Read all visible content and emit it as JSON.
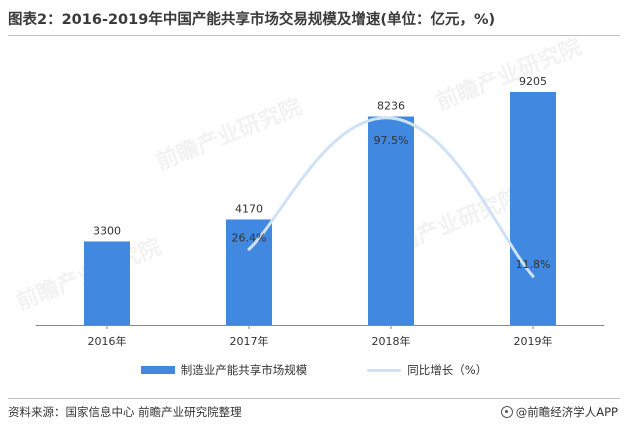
{
  "title": "图表2：2016-2019年中国产能共享市场交易规模及增速(单位：亿元，%)",
  "source": "资料来源：国家信息中心 前瞻产业研究院整理",
  "brand": "@前瞻经济学人APP",
  "watermark": "前瞻产业研究院",
  "colors": {
    "bar": "#4188e0",
    "line": "#cfe2f5",
    "axis": "#888888",
    "text": "#333333"
  },
  "chart_data": {
    "type": "bar",
    "categories": [
      "2016年",
      "2017年",
      "2018年",
      "2019年"
    ],
    "series": [
      {
        "name": "制造业产能共享市场规模",
        "type": "bar",
        "values": [
          3300,
          4170,
          8236,
          9205
        ],
        "labels": [
          "3300",
          "4170",
          "8236",
          "9205"
        ]
      },
      {
        "name": "同比增长（%）",
        "type": "line",
        "values": [
          null,
          26.4,
          97.5,
          11.8
        ],
        "labels": [
          "",
          "26.4%",
          "97.5%",
          "11.8%"
        ]
      }
    ],
    "legend_position": "bottom",
    "grid": false
  }
}
